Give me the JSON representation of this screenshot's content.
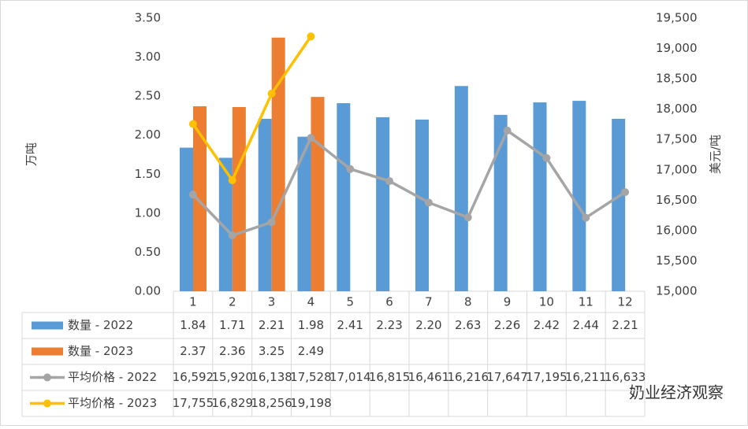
{
  "chart_data": {
    "type": "bar_line_table",
    "y_label": "万吨",
    "y2_label": "美元/吨",
    "watermark": "奶业经济观察",
    "categories": [
      "1",
      "2",
      "3",
      "4",
      "5",
      "6",
      "7",
      "8",
      "9",
      "10",
      "11",
      "12"
    ],
    "ylim": [
      0,
      3.5
    ],
    "yticks": [
      {
        "value": 0,
        "label": "0.00"
      },
      {
        "value": 0.5,
        "label": "0.50"
      },
      {
        "value": 1,
        "label": "1.00"
      },
      {
        "value": 1.5,
        "label": "1.50"
      },
      {
        "value": 2,
        "label": "2.00"
      },
      {
        "value": 2.5,
        "label": "2.50"
      },
      {
        "value": 3,
        "label": "3.00"
      },
      {
        "value": 3.5,
        "label": "3.50"
      }
    ],
    "y2lim": [
      15000,
      19500
    ],
    "y2ticks": [
      {
        "value": 15000,
        "label": "15,000"
      },
      {
        "value": 15500,
        "label": "15,500"
      },
      {
        "value": 16000,
        "label": "16,000"
      },
      {
        "value": 16500,
        "label": "16,500"
      },
      {
        "value": 17000,
        "label": "17,000"
      },
      {
        "value": 17500,
        "label": "17,500"
      },
      {
        "value": 18000,
        "label": "18,000"
      },
      {
        "value": 18500,
        "label": "18,500"
      },
      {
        "value": 19000,
        "label": "19,000"
      },
      {
        "value": 19500,
        "label": "19,500"
      }
    ],
    "grid": false,
    "series": [
      {
        "name": "数量 - 2022",
        "kind": "bar",
        "color": "#5b9bd5",
        "values": [
          1.84,
          1.71,
          2.21,
          1.98,
          2.41,
          2.23,
          2.2,
          2.63,
          2.26,
          2.42,
          2.44,
          2.21
        ],
        "value_labels": [
          "1.84",
          "1.71",
          "2.21",
          "1.98",
          "2.41",
          "2.23",
          "2.20",
          "2.63",
          "2.26",
          "2.42",
          "2.44",
          "2.21"
        ]
      },
      {
        "name": "数量 - 2023",
        "kind": "bar",
        "color": "#ed7d31",
        "values": [
          2.37,
          2.36,
          3.25,
          2.49,
          null,
          null,
          null,
          null,
          null,
          null,
          null,
          null
        ],
        "value_labels": [
          "2.37",
          "2.36",
          "3.25",
          "2.49",
          null,
          null,
          null,
          null,
          null,
          null,
          null,
          null
        ]
      },
      {
        "name": "平均价格 - 2022",
        "kind": "line",
        "axis": "y2",
        "color": "#a5a5a5",
        "values": [
          16592,
          15920,
          16138,
          17528,
          17014,
          16815,
          16461,
          16216,
          17647,
          17195,
          16211,
          16633
        ],
        "value_labels": [
          "16,592",
          "15,920",
          "16,138",
          "17,528",
          "17,014",
          "16,815",
          "16,461",
          "16,216",
          "17,647",
          "17,195",
          "16,211",
          "16,633"
        ]
      },
      {
        "name": "平均价格 - 2023",
        "kind": "line",
        "axis": "y2",
        "color": "#ffc000",
        "values": [
          17755,
          16829,
          18256,
          19198,
          null,
          null,
          null,
          null,
          null,
          null,
          null,
          null
        ],
        "value_labels": [
          "17,755",
          "16,829",
          "18,256",
          "19,198",
          null,
          null,
          null,
          null,
          null,
          null,
          null,
          null
        ]
      }
    ]
  }
}
